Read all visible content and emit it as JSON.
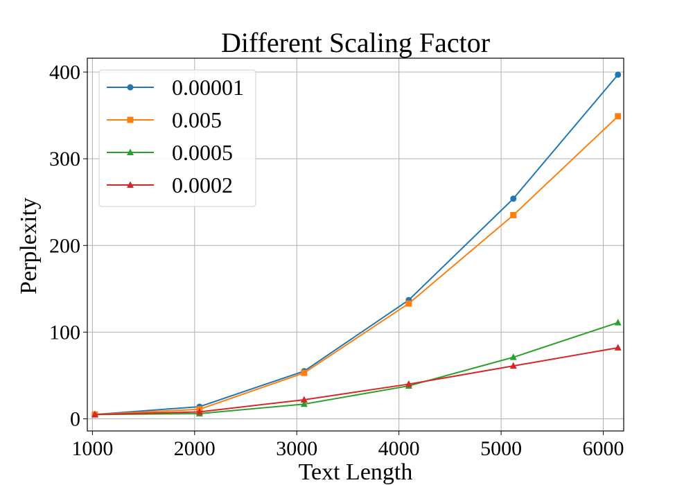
{
  "chart_data": {
    "type": "line",
    "title": "Different Scaling Factor",
    "xlabel": "Text Length",
    "ylabel": "Perplexity",
    "xlim": [
      950,
      6200
    ],
    "ylim": [
      -14,
      416
    ],
    "xticks": [
      1000,
      2000,
      3000,
      4000,
      5000,
      6000
    ],
    "yticks": [
      0,
      100,
      200,
      300,
      400
    ],
    "grid": true,
    "legend_position": "upper-left",
    "x": [
      1024,
      2048,
      3072,
      4096,
      5120,
      6144
    ],
    "series": [
      {
        "name": "0.00001",
        "color": "#1f77b4",
        "marker": "circle",
        "values": [
          5,
          14,
          55,
          137,
          254,
          397
        ]
      },
      {
        "name": "0.005",
        "color": "#ff7f0e",
        "marker": "square",
        "values": [
          5,
          11,
          53,
          133,
          235,
          349
        ]
      },
      {
        "name": "0.0005",
        "color": "#2ca02c",
        "marker": "triangle",
        "values": [
          5,
          6,
          17,
          38,
          71,
          111
        ]
      },
      {
        "name": "0.0002",
        "color": "#d62728",
        "marker": "triangle",
        "values": [
          5,
          8,
          22,
          40,
          61,
          82
        ]
      }
    ]
  }
}
